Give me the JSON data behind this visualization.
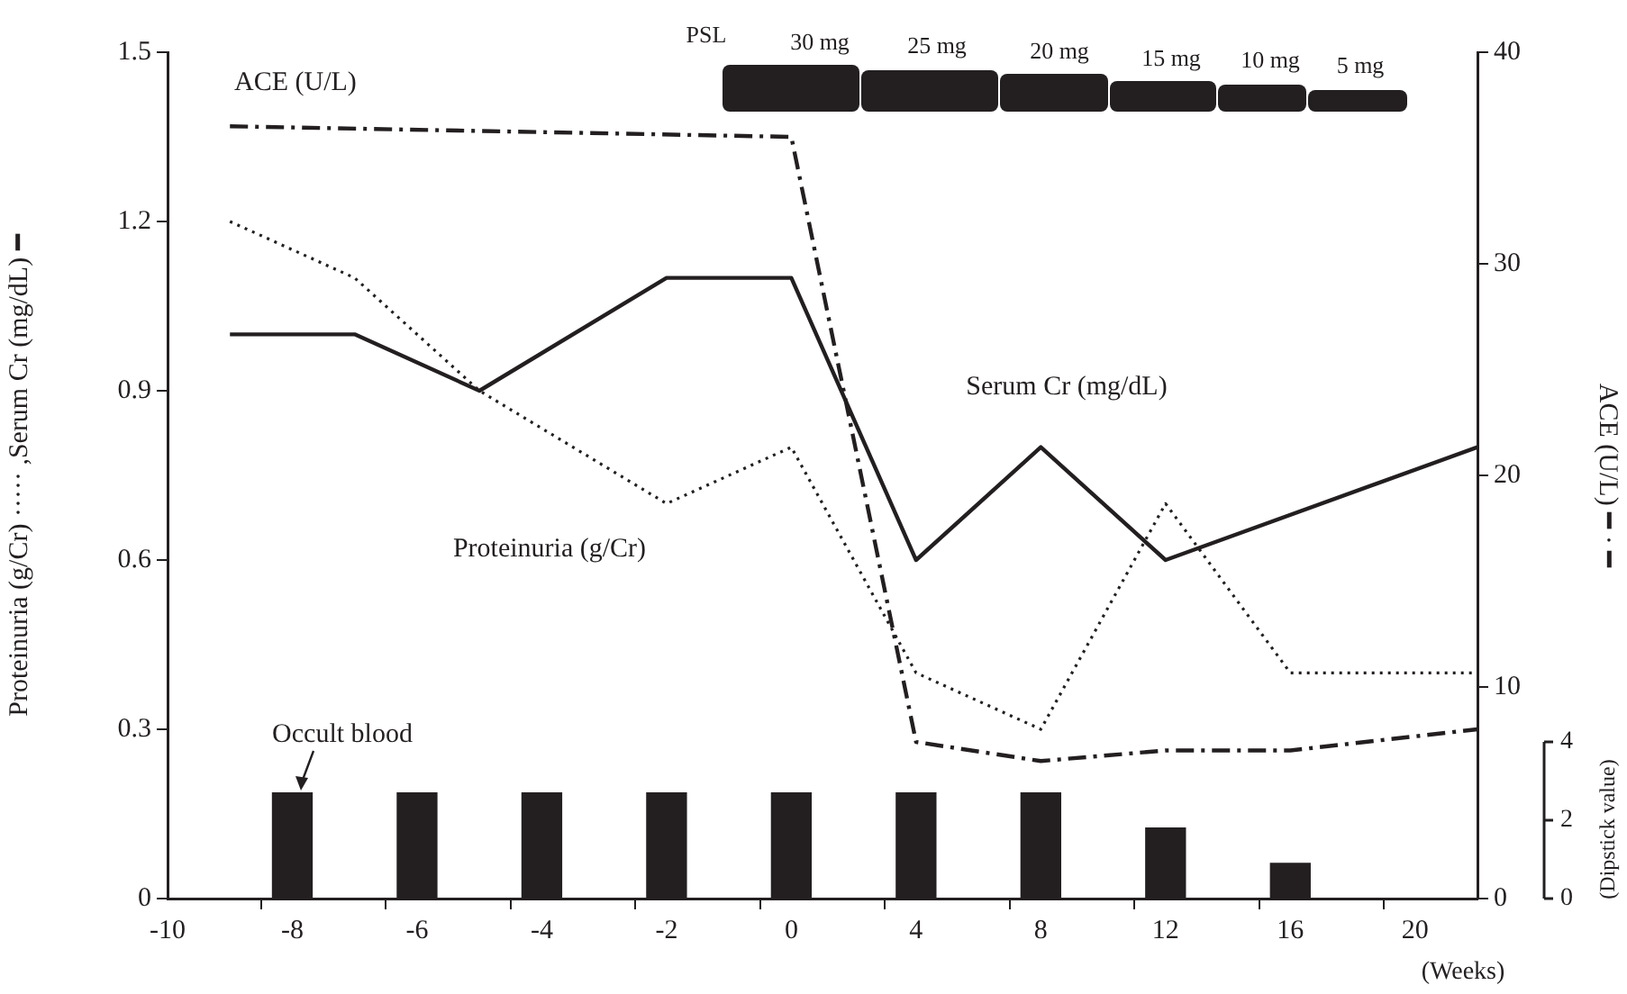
{
  "chart_data": {
    "type": "line",
    "categories": [
      "-10",
      null,
      "-8",
      null,
      "-6",
      null,
      "-4",
      null,
      "-2",
      null,
      "0",
      null,
      "4",
      null,
      "8",
      null,
      "12",
      null,
      "16",
      null,
      "20",
      null
    ],
    "series": [
      {
        "name": "Serum Cr (mg/dL)",
        "line_style": "solid",
        "color": "#231f20",
        "values": [
          null,
          1.0,
          null,
          1.0,
          null,
          0.9,
          null,
          null,
          1.1,
          null,
          1.1,
          null,
          0.6,
          null,
          0.8,
          null,
          0.6,
          null,
          null,
          null,
          null,
          0.8
        ]
      },
      {
        "name": "Proteinuria (g/Cr)",
        "line_style": "dotted",
        "color": "#231f20",
        "values": [
          null,
          1.2,
          null,
          1.1,
          null,
          0.9,
          null,
          null,
          0.7,
          null,
          0.8,
          null,
          0.4,
          null,
          0.3,
          null,
          0.7,
          null,
          0.4,
          null,
          null,
          0.4
        ]
      },
      {
        "name": "ACE (U/L)",
        "line_style": "dashed",
        "axis": "y2",
        "color": "#231f20",
        "values": [
          null,
          36.5,
          null,
          null,
          null,
          null,
          null,
          null,
          null,
          null,
          36.0,
          null,
          7.4,
          null,
          6.5,
          null,
          7.0,
          null,
          7.0,
          null,
          null,
          8.0
        ]
      },
      {
        "name": "Occult blood",
        "type": "bar",
        "axis": "y3",
        "color": "#231f20",
        "values": [
          null,
          null,
          2.7,
          null,
          2.7,
          null,
          2.7,
          null,
          2.7,
          null,
          2.7,
          null,
          2.7,
          null,
          2.7,
          null,
          1.8,
          null,
          0.9,
          null,
          null,
          null
        ]
      }
    ],
    "xlabel": "(Weeks)",
    "ylabel": "Proteinuria (g/Cr) ····· ,Serum Cr (mg/dL) ━",
    "y2label": "ACE (U/L) ━ · ━",
    "y3label": "(Dipstick value)",
    "ylim": [
      0,
      1.5
    ],
    "yticks": [
      0,
      0.3,
      0.6,
      0.9,
      1.2,
      1.5
    ],
    "y2lim": [
      0,
      40
    ],
    "y2ticks": [
      0,
      10,
      20,
      30,
      40
    ],
    "y3lim": [
      0,
      4
    ],
    "y3ticks": [
      0,
      2,
      4
    ],
    "annotations": [
      "PSL",
      "30 mg",
      "25 mg",
      "20 mg",
      "15 mg",
      "10 mg",
      "5 mg"
    ],
    "marker": "none",
    "grid": false,
    "legend": false
  }
}
